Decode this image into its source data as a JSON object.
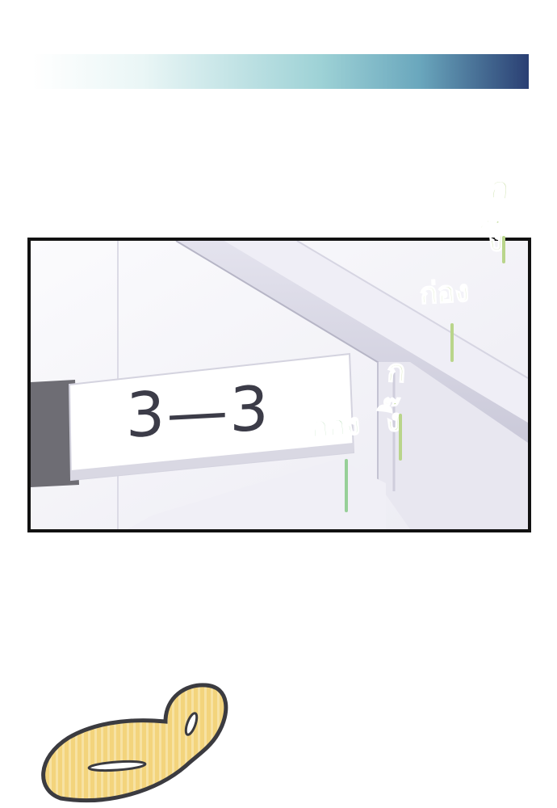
{
  "header_bar": {
    "colors": [
      "#ffffff",
      "#9ed2d6",
      "#2a3f73"
    ]
  },
  "panel": {
    "sign": {
      "label": "3—3"
    },
    "sound_effects": [
      {
        "text": "กิ๊ง",
        "color": "#b9d58b"
      },
      {
        "text": "ก่อง",
        "color": "#b9d58b"
      },
      {
        "text": "กิ๊ง",
        "color": "#b9d58b"
      },
      {
        "text": "ก่อง",
        "color": "#97cf98"
      }
    ]
  },
  "speech_bubble": {
    "fill_color": "#f3d47c",
    "outline_color": "#3b3b40"
  }
}
